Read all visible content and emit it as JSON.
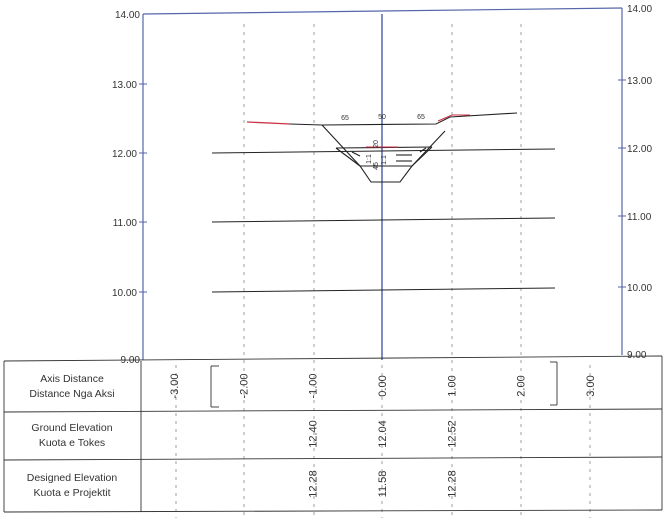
{
  "diagram": {
    "y_axis": {
      "ticks": [
        {
          "value": 14,
          "left_label": "14.00",
          "right_label": "14.00"
        },
        {
          "value": 13,
          "left_label": "13.00",
          "right_label": "13.00"
        },
        {
          "value": 12,
          "left_label": "12.00",
          "right_label": "12.00"
        },
        {
          "value": 11,
          "left_label": "11.00",
          "right_label": "11.00"
        },
        {
          "value": 10,
          "left_label": "10.00",
          "right_label": "10.00"
        },
        {
          "value": 9,
          "left_label": "9.00",
          "right_label": "9.00"
        }
      ]
    },
    "channel_labels": {
      "top_left_width": "65",
      "top_mid_width": "50",
      "top_right_width": "65",
      "depth_1": "20",
      "depth_2": "45",
      "slope_left": "1:1",
      "slope_right": "1:1"
    },
    "rows": [
      {
        "name": "axis-distance",
        "label_1": "Axis Distance",
        "label_2": "Distance Nga Aksi",
        "values": [
          {
            "x": -3,
            "text": "-3.00"
          },
          {
            "x": -2,
            "text": "-2.00"
          },
          {
            "x": -1,
            "text": "-1.00"
          },
          {
            "x": 0,
            "text": "0.00"
          },
          {
            "x": 1,
            "text": "1.00"
          },
          {
            "x": 2,
            "text": "2.00"
          },
          {
            "x": 3,
            "text": "3.00"
          }
        ]
      },
      {
        "name": "ground-elevation",
        "label_1": "Ground Elevation",
        "label_2": "Kuota e Tokes",
        "values": [
          {
            "x": -1,
            "text": "12.40"
          },
          {
            "x": 0,
            "text": "12.04"
          },
          {
            "x": 1,
            "text": "12.52"
          }
        ]
      },
      {
        "name": "designed-elevation",
        "label_1": "Designed Elevation",
        "label_2": "Kuota e Projektit",
        "values": [
          {
            "x": -1,
            "text": "12.28"
          },
          {
            "x": 0,
            "text": "11.58"
          },
          {
            "x": 1,
            "text": "12.28"
          }
        ]
      }
    ]
  }
}
